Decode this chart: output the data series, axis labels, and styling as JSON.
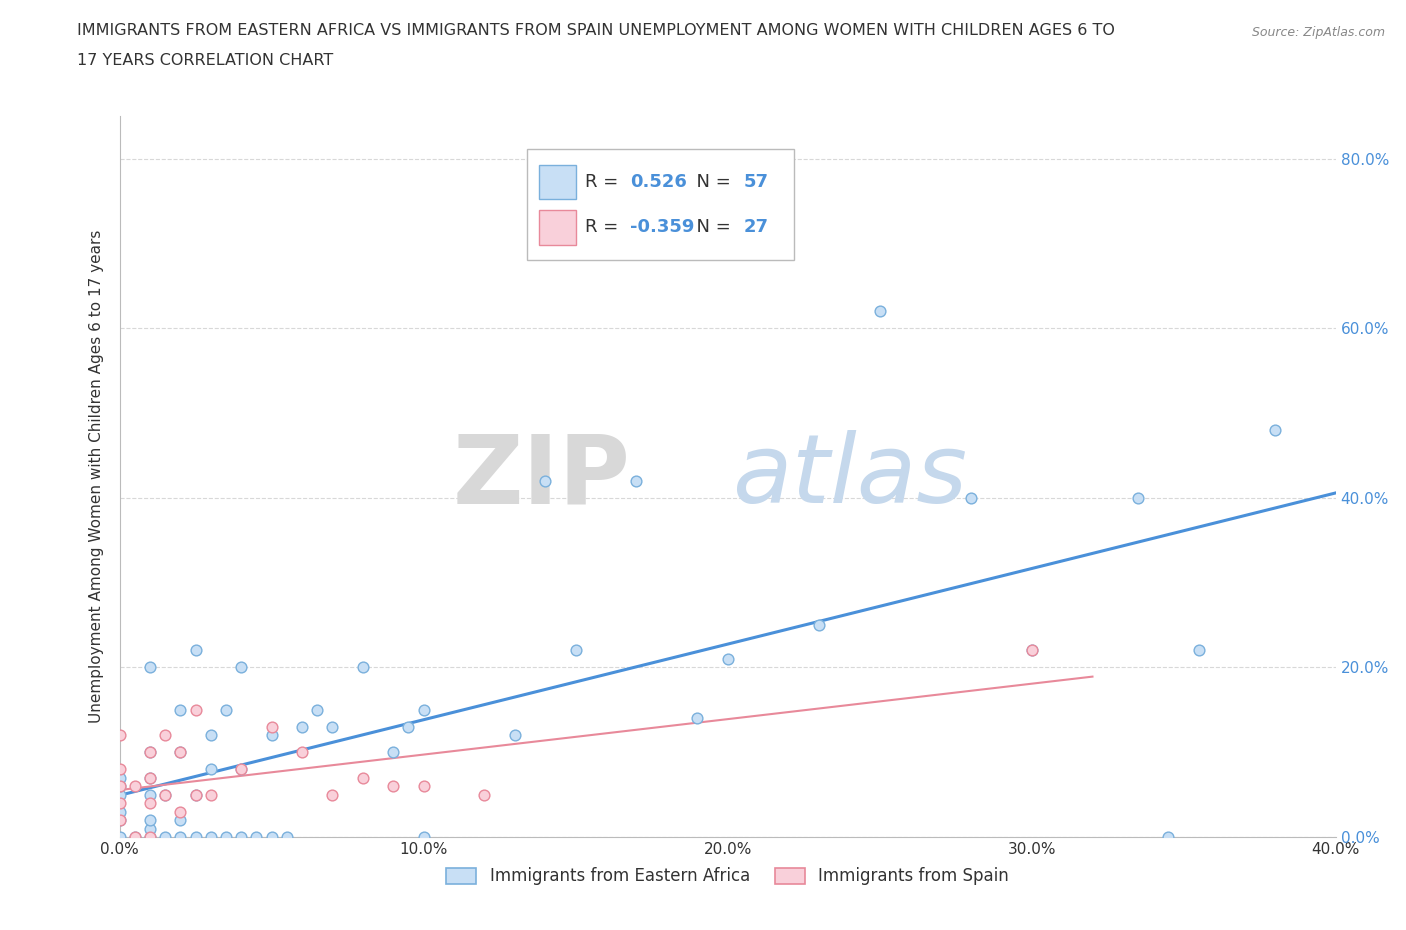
{
  "title_line1": "IMMIGRANTS FROM EASTERN AFRICA VS IMMIGRANTS FROM SPAIN UNEMPLOYMENT AMONG WOMEN WITH CHILDREN AGES 6 TO",
  "title_line2": "17 YEARS CORRELATION CHART",
  "source": "Source: ZipAtlas.com",
  "ylabel": "Unemployment Among Women with Children Ages 6 to 17 years",
  "xlim": [
    0.0,
    0.4
  ],
  "ylim": [
    0.0,
    0.85
  ],
  "xtick_labels": [
    "0.0%",
    "10.0%",
    "20.0%",
    "30.0%",
    "40.0%"
  ],
  "xtick_vals": [
    0.0,
    0.1,
    0.2,
    0.3,
    0.4
  ],
  "ytick_labels": [
    "0.0%",
    "20.0%",
    "40.0%",
    "60.0%",
    "80.0%"
  ],
  "ytick_vals": [
    0.0,
    0.2,
    0.4,
    0.6,
    0.8
  ],
  "series1_fill_color": "#c8dff5",
  "series1_edge_color": "#7ab0dc",
  "series2_fill_color": "#f9d0da",
  "series2_edge_color": "#e8899a",
  "series1_line_color": "#4a90d9",
  "series1_label": "Immigrants from Eastern Africa",
  "series2_label": "Immigrants from Spain",
  "R1": 0.526,
  "N1": 57,
  "R2": -0.359,
  "N2": 27,
  "background_color": "#ffffff",
  "grid_color": "#d8d8d8",
  "text_color": "#333333",
  "blue_color": "#4a90d9",
  "series1_x": [
    0.0,
    0.0,
    0.0,
    0.0,
    0.0,
    0.0,
    0.005,
    0.01,
    0.01,
    0.01,
    0.01,
    0.01,
    0.01,
    0.01,
    0.015,
    0.015,
    0.02,
    0.02,
    0.02,
    0.02,
    0.025,
    0.025,
    0.025,
    0.03,
    0.03,
    0.03,
    0.035,
    0.035,
    0.04,
    0.04,
    0.04,
    0.045,
    0.05,
    0.05,
    0.055,
    0.06,
    0.065,
    0.07,
    0.08,
    0.09,
    0.095,
    0.1,
    0.1,
    0.13,
    0.14,
    0.15,
    0.17,
    0.19,
    0.2,
    0.23,
    0.25,
    0.28,
    0.3,
    0.335,
    0.345,
    0.355,
    0.38
  ],
  "series1_y": [
    0.0,
    0.02,
    0.03,
    0.05,
    0.06,
    0.07,
    0.0,
    0.0,
    0.01,
    0.02,
    0.05,
    0.07,
    0.1,
    0.2,
    0.0,
    0.05,
    0.0,
    0.02,
    0.1,
    0.15,
    0.0,
    0.05,
    0.22,
    0.0,
    0.08,
    0.12,
    0.0,
    0.15,
    0.0,
    0.08,
    0.2,
    0.0,
    0.0,
    0.12,
    0.0,
    0.13,
    0.15,
    0.13,
    0.2,
    0.1,
    0.13,
    0.0,
    0.15,
    0.12,
    0.42,
    0.22,
    0.42,
    0.14,
    0.21,
    0.25,
    0.62,
    0.4,
    0.22,
    0.4,
    0.0,
    0.22,
    0.48
  ],
  "series2_x": [
    0.0,
    0.0,
    0.0,
    0.0,
    0.0,
    0.005,
    0.005,
    0.01,
    0.01,
    0.01,
    0.01,
    0.015,
    0.015,
    0.02,
    0.02,
    0.025,
    0.025,
    0.03,
    0.04,
    0.05,
    0.06,
    0.07,
    0.08,
    0.09,
    0.1,
    0.12,
    0.3
  ],
  "series2_y": [
    0.02,
    0.04,
    0.06,
    0.08,
    0.12,
    0.0,
    0.06,
    0.0,
    0.04,
    0.07,
    0.1,
    0.05,
    0.12,
    0.03,
    0.1,
    0.05,
    0.15,
    0.05,
    0.08,
    0.13,
    0.1,
    0.05,
    0.07,
    0.06,
    0.06,
    0.05,
    0.22
  ]
}
